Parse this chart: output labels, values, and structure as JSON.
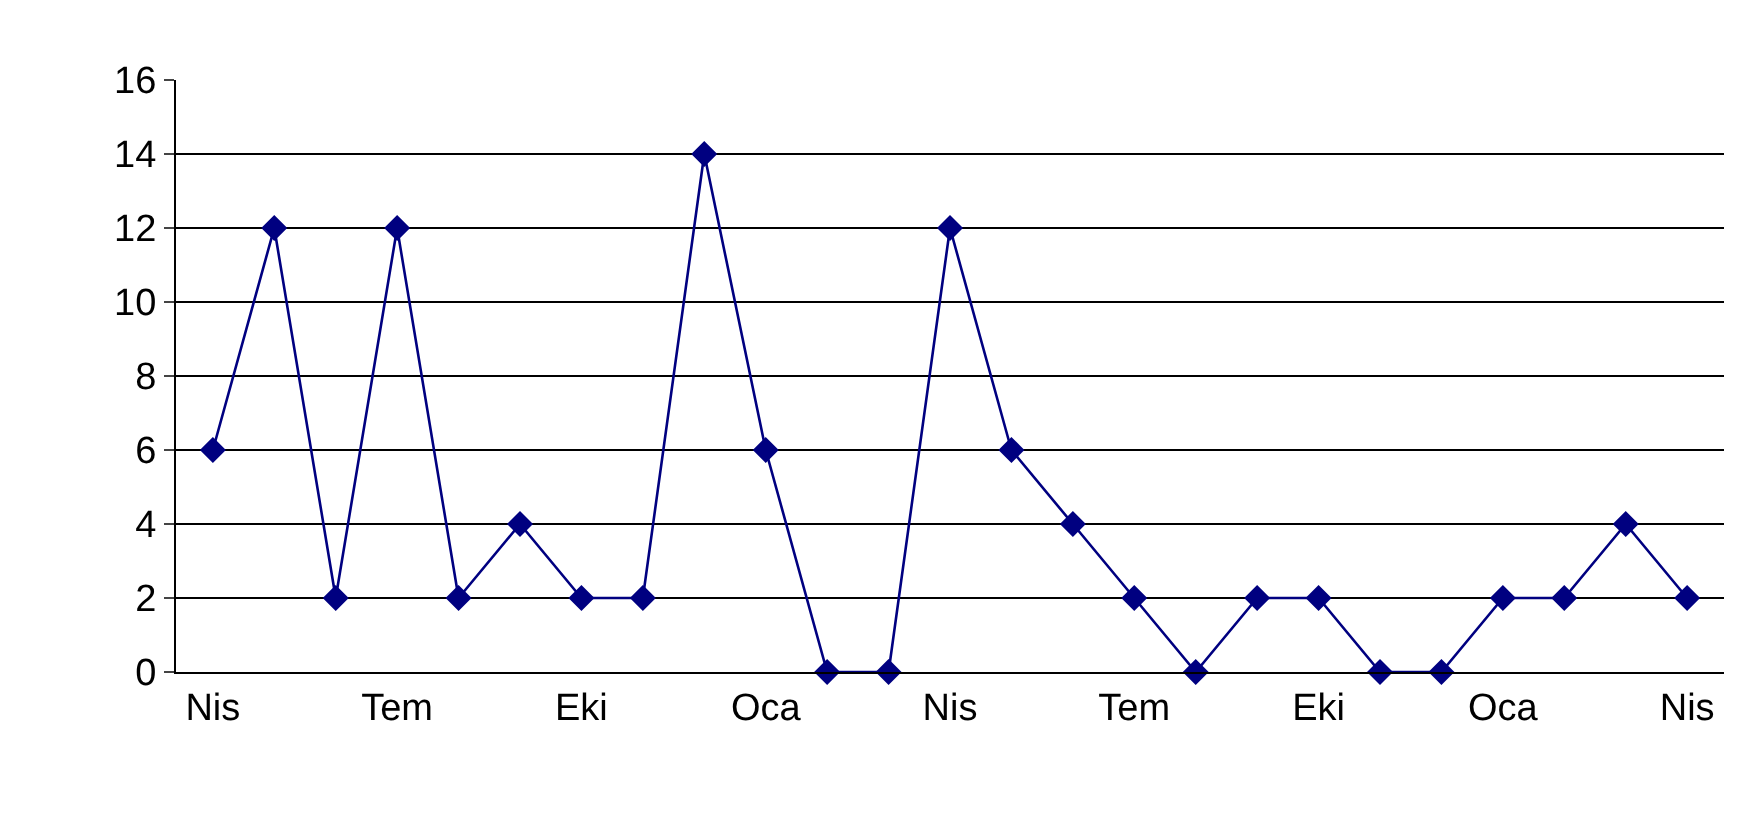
{
  "chart_data": {
    "type": "line",
    "categories": [
      "Nis",
      null,
      null,
      "Tem",
      null,
      null,
      "Eki",
      null,
      null,
      "Oca",
      null,
      null,
      "Nis",
      null,
      null,
      "Tem",
      null,
      null,
      "Eki",
      null,
      null,
      "Oca",
      null,
      null,
      "Nis"
    ],
    "series": [
      {
        "color": "#000080",
        "values": [
          6,
          12,
          2,
          12,
          2,
          4,
          2,
          2,
          14,
          6,
          0,
          0,
          12,
          6,
          4,
          2,
          0,
          2,
          2,
          0,
          0,
          2,
          2,
          4,
          2
        ]
      }
    ],
    "ylim": [
      0,
      16
    ],
    "yticks": [
      0,
      2,
      4,
      6,
      8,
      10,
      12,
      14,
      16
    ],
    "grid": "y",
    "marker": "diamond",
    "line_style": "solid",
    "legend": false
  }
}
